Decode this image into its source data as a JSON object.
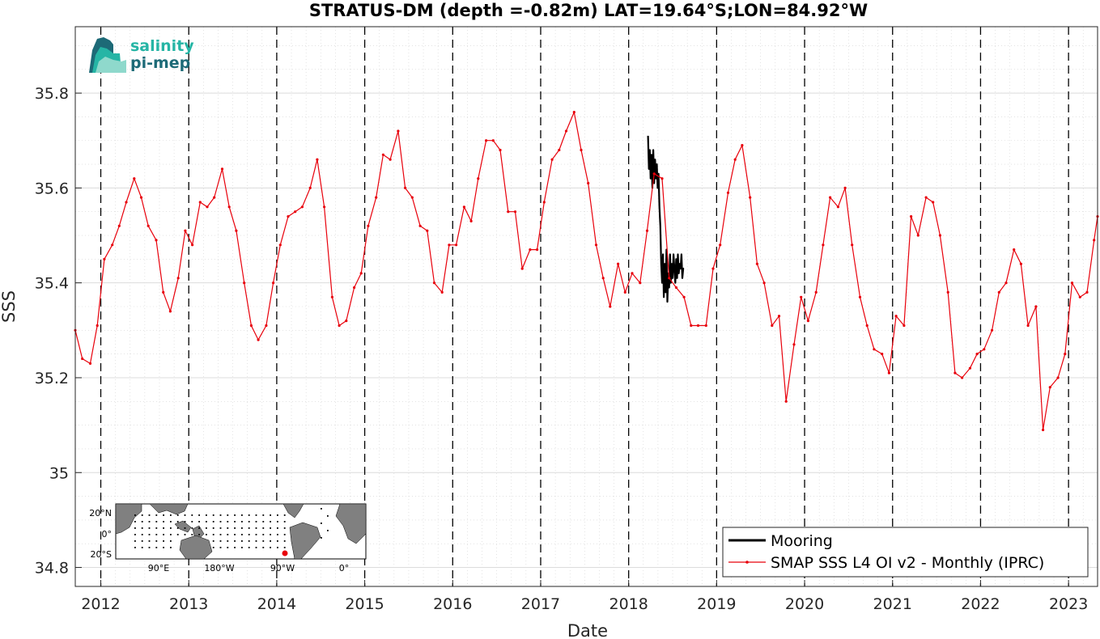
{
  "chart_data": {
    "type": "line",
    "title": "STRATUS-DM (depth =-0.82m) LAT=19.64°S;LON=84.92°W",
    "xlabel": "Date",
    "ylabel": "SSS",
    "xlim": [
      2011.71,
      2023.33
    ],
    "ylim": [
      34.76,
      35.94
    ],
    "x_ticks": [
      "2012",
      "2013",
      "2014",
      "2015",
      "2016",
      "2017",
      "2018",
      "2019",
      "2020",
      "2021",
      "2022",
      "2023"
    ],
    "y_ticks": [
      "34.8",
      "35",
      "35.2",
      "35.4",
      "35.6",
      "35.8"
    ],
    "grid": true,
    "legend_position": "bottom-right",
    "series": [
      {
        "name": "Mooring",
        "color": "#000000",
        "x": [
          2018.22,
          2018.23,
          2018.24,
          2018.25,
          2018.26,
          2018.27,
          2018.28,
          2018.29,
          2018.3,
          2018.31,
          2018.32,
          2018.33,
          2018.34,
          2018.35,
          2018.36,
          2018.37,
          2018.38,
          2018.39,
          2018.4,
          2018.41,
          2018.42,
          2018.43,
          2018.44,
          2018.45,
          2018.46,
          2018.47,
          2018.48,
          2018.49,
          2018.5,
          2018.51,
          2018.52,
          2018.53,
          2018.54,
          2018.55,
          2018.56,
          2018.57,
          2018.58,
          2018.59,
          2018.6,
          2018.61,
          2018.62,
          2018.63
        ],
        "y": [
          35.71,
          35.64,
          35.68,
          35.62,
          35.67,
          35.6,
          35.68,
          35.61,
          35.66,
          35.62,
          35.65,
          35.6,
          35.63,
          35.56,
          35.52,
          35.44,
          35.4,
          35.46,
          35.37,
          35.44,
          35.38,
          35.47,
          35.36,
          35.42,
          35.39,
          35.46,
          35.4,
          35.44,
          35.41,
          35.46,
          35.43,
          35.4,
          35.45,
          35.41,
          35.46,
          35.42,
          35.44,
          35.43,
          35.46,
          35.41,
          35.43,
          35.43
        ]
      },
      {
        "name": "SMAP SSS L4 OI v2 - Monthly (IPRC)",
        "color": "#e8000b",
        "x": [
          2011.71,
          2011.79,
          2011.88,
          2011.96,
          2012.04,
          2012.13,
          2012.21,
          2012.29,
          2012.38,
          2012.46,
          2012.54,
          2012.63,
          2012.71,
          2012.79,
          2012.88,
          2012.96,
          2013.04,
          2013.13,
          2013.21,
          2013.29,
          2013.38,
          2013.46,
          2013.54,
          2013.63,
          2013.71,
          2013.79,
          2013.88,
          2013.96,
          2014.04,
          2014.13,
          2014.21,
          2014.29,
          2014.38,
          2014.46,
          2014.54,
          2014.63,
          2014.71,
          2014.79,
          2014.88,
          2014.96,
          2015.04,
          2015.13,
          2015.21,
          2015.29,
          2015.38,
          2015.46,
          2015.54,
          2015.63,
          2015.71,
          2015.79,
          2015.88,
          2015.96,
          2016.04,
          2016.13,
          2016.21,
          2016.29,
          2016.38,
          2016.46,
          2016.54,
          2016.63,
          2016.71,
          2016.79,
          2016.88,
          2016.96,
          2017.04,
          2017.13,
          2017.21,
          2017.29,
          2017.38,
          2017.46,
          2017.54,
          2017.63,
          2017.71,
          2017.79,
          2017.88,
          2017.96,
          2018.04,
          2018.13,
          2018.21,
          2018.29,
          2018.38,
          2018.46,
          2018.54,
          2018.63,
          2018.71,
          2018.79,
          2018.88,
          2018.96,
          2019.04,
          2019.13,
          2019.21,
          2019.29,
          2019.38,
          2019.46,
          2019.54,
          2019.63,
          2019.71,
          2019.79,
          2019.88,
          2019.96,
          2020.04,
          2020.13,
          2020.21,
          2020.29,
          2020.38,
          2020.46,
          2020.54,
          2020.63,
          2020.71,
          2020.79,
          2020.88,
          2020.96,
          2021.04,
          2021.13,
          2021.21,
          2021.29,
          2021.38,
          2021.46,
          2021.54,
          2021.63,
          2021.71,
          2021.79,
          2021.88,
          2021.96,
          2022.04,
          2022.13,
          2022.21,
          2022.29,
          2022.38,
          2022.46,
          2022.54,
          2022.63,
          2022.71,
          2022.79,
          2022.88,
          2022.96,
          2023.04,
          2023.13,
          2023.21,
          2023.29,
          2023.33
        ],
        "y": [
          35.3,
          35.24,
          35.23,
          35.31,
          35.45,
          35.48,
          35.52,
          35.57,
          35.62,
          35.58,
          35.52,
          35.49,
          35.38,
          35.34,
          35.41,
          35.51,
          35.48,
          35.57,
          35.56,
          35.58,
          35.64,
          35.56,
          35.51,
          35.4,
          35.31,
          35.28,
          35.31,
          35.4,
          35.48,
          35.54,
          35.55,
          35.56,
          35.6,
          35.66,
          35.56,
          35.37,
          35.31,
          35.32,
          35.39,
          35.42,
          35.52,
          35.58,
          35.67,
          35.66,
          35.72,
          35.6,
          35.58,
          35.52,
          35.51,
          35.4,
          35.38,
          35.48,
          35.48,
          35.56,
          35.53,
          35.62,
          35.7,
          35.7,
          35.68,
          35.55,
          35.55,
          35.43,
          35.47,
          35.47,
          35.57,
          35.66,
          35.68,
          35.72,
          35.76,
          35.68,
          35.61,
          35.48,
          35.41,
          35.35,
          35.44,
          35.38,
          35.42,
          35.4,
          35.51,
          35.63,
          35.62,
          35.41,
          35.39,
          35.37,
          35.31,
          35.31,
          35.31,
          35.43,
          35.48,
          35.59,
          35.66,
          35.69,
          35.58,
          35.44,
          35.4,
          35.31,
          35.33,
          35.15,
          35.27,
          35.37,
          35.32,
          35.38,
          35.48,
          35.58,
          35.56,
          35.6,
          35.48,
          35.37,
          35.31,
          35.26,
          35.25,
          35.21,
          35.33,
          35.31,
          35.54,
          35.5,
          35.58,
          35.57,
          35.5,
          35.38,
          35.21,
          35.2,
          35.22,
          35.25,
          35.26,
          35.3,
          35.38,
          35.4,
          35.47,
          35.44,
          35.31,
          35.35,
          35.09,
          35.18,
          35.2,
          35.25,
          35.4,
          35.37,
          35.38,
          35.49,
          35.54
        ]
      }
    ]
  },
  "logo": {
    "line1": "salinity",
    "line2": "pi-mep"
  },
  "inset_map": {
    "lat_labels": [
      "20°N",
      "0°",
      "20°S"
    ],
    "lon_labels": [
      "90°E",
      "180°W",
      "90°W",
      "0°"
    ],
    "land_color": "#808080",
    "marker_color": "#e8000b"
  }
}
